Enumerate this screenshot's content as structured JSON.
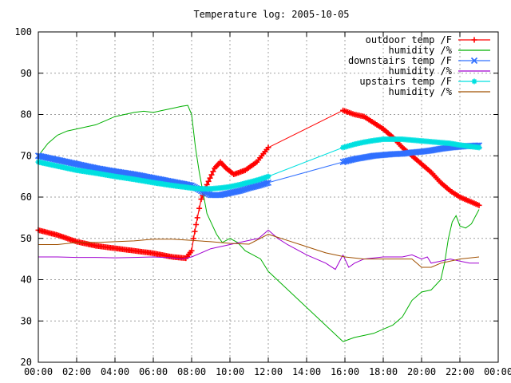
{
  "chart_data": {
    "type": "line",
    "title": "Temperature log: 2005-10-05",
    "xlim": [
      0,
      24
    ],
    "ylim": [
      20,
      100
    ],
    "x_ticks": [
      {
        "v": 0,
        "label": "00:00"
      },
      {
        "v": 2,
        "label": "02:00"
      },
      {
        "v": 4,
        "label": "04:00"
      },
      {
        "v": 6,
        "label": "06:00"
      },
      {
        "v": 8,
        "label": "08:00"
      },
      {
        "v": 10,
        "label": "10:00"
      },
      {
        "v": 12,
        "label": "12:00"
      },
      {
        "v": 14,
        "label": "14:00"
      },
      {
        "v": 16,
        "label": "16:00"
      },
      {
        "v": 18,
        "label": "18:00"
      },
      {
        "v": 20,
        "label": "20:00"
      },
      {
        "v": 22,
        "label": "22:00"
      },
      {
        "v": 24,
        "label": "00:00"
      }
    ],
    "y_ticks": [
      {
        "v": 20,
        "label": "20"
      },
      {
        "v": 30,
        "label": "30"
      },
      {
        "v": 40,
        "label": "40"
      },
      {
        "v": 50,
        "label": "50"
      },
      {
        "v": 60,
        "label": "60"
      },
      {
        "v": 70,
        "label": "70"
      },
      {
        "v": 80,
        "label": "80"
      },
      {
        "v": 90,
        "label": "90"
      },
      {
        "v": 100,
        "label": "100"
      }
    ],
    "grid": true,
    "legend_position": "top-right",
    "series": [
      {
        "name": "outdoor temp /F",
        "color": "#ff0000",
        "marker": "plus",
        "segments": [
          [
            [
              0,
              52
            ],
            [
              1,
              50.8
            ],
            [
              2,
              49.2
            ],
            [
              3,
              48.2
            ],
            [
              4,
              47.6
            ],
            [
              5,
              47
            ],
            [
              6,
              46.4
            ],
            [
              7,
              45.5
            ],
            [
              7.7,
              45.2
            ],
            [
              8,
              47
            ],
            [
              8.1,
              50
            ],
            [
              8.3,
              55
            ],
            [
              8.5,
              59.5
            ],
            [
              8.8,
              63
            ],
            [
              9.2,
              67
            ],
            [
              9.5,
              68.5
            ],
            [
              9.8,
              67
            ],
            [
              10.2,
              65.5
            ],
            [
              10.8,
              66.5
            ],
            [
              11.4,
              68.5
            ],
            [
              12,
              72
            ]
          ],
          [
            [
              15.9,
              81
            ],
            [
              16.5,
              80
            ],
            [
              17,
              79.5
            ],
            [
              17.5,
              78
            ],
            [
              18,
              76.5
            ],
            [
              18.5,
              74.5
            ],
            [
              19,
              72
            ],
            [
              19.5,
              70
            ],
            [
              20,
              68
            ],
            [
              20.5,
              66
            ],
            [
              21,
              63.5
            ],
            [
              21.5,
              61.5
            ],
            [
              22,
              60
            ],
            [
              22.5,
              59
            ],
            [
              23,
              58
            ]
          ]
        ]
      },
      {
        "name": "humidity /%",
        "color": "#00b000",
        "marker": "none",
        "segments": [
          [
            [
              0,
              70
            ],
            [
              0.5,
              73
            ],
            [
              1,
              75
            ],
            [
              1.5,
              76
            ],
            [
              2,
              76.5
            ],
            [
              2.5,
              77
            ],
            [
              3,
              77.5
            ],
            [
              3.5,
              78.5
            ],
            [
              4,
              79.5
            ],
            [
              4.5,
              80
            ],
            [
              5,
              80.5
            ],
            [
              5.5,
              80.8
            ],
            [
              6,
              80.5
            ],
            [
              6.5,
              81
            ],
            [
              7,
              81.5
            ],
            [
              7.5,
              82
            ],
            [
              7.8,
              82.2
            ],
            [
              8,
              80
            ],
            [
              8.2,
              72
            ],
            [
              8.4,
              66
            ],
            [
              8.6,
              61
            ],
            [
              8.8,
              56
            ],
            [
              9,
              54
            ],
            [
              9.3,
              51
            ],
            [
              9.6,
              49
            ],
            [
              10,
              50
            ],
            [
              10.4,
              49
            ],
            [
              10.8,
              47
            ],
            [
              11.2,
              46
            ],
            [
              11.6,
              45
            ],
            [
              12,
              42
            ]
          ],
          [
            [
              15.9,
              25
            ],
            [
              16.5,
              26
            ],
            [
              17,
              26.5
            ],
            [
              17.5,
              27
            ],
            [
              18,
              28
            ],
            [
              18.5,
              29
            ],
            [
              19,
              31
            ],
            [
              19.5,
              35
            ],
            [
              20,
              37
            ],
            [
              20.5,
              37.5
            ],
            [
              21,
              40
            ],
            [
              21.2,
              44
            ],
            [
              21.4,
              50
            ],
            [
              21.6,
              54
            ],
            [
              21.8,
              55.5
            ],
            [
              22,
              53
            ],
            [
              22.3,
              52.5
            ],
            [
              22.6,
              53.5
            ],
            [
              23,
              57
            ]
          ]
        ]
      },
      {
        "name": "downstairs temp /F",
        "color": "#3070ff",
        "marker": "x",
        "segments": [
          [
            [
              0,
              70
            ],
            [
              1,
              69
            ],
            [
              2,
              68
            ],
            [
              3,
              67
            ],
            [
              4,
              66.2
            ],
            [
              5,
              65.5
            ],
            [
              6,
              64.6
            ],
            [
              7,
              63.7
            ],
            [
              8,
              62.8
            ],
            [
              8.5,
              61.5
            ],
            [
              9,
              60.5
            ],
            [
              9.5,
              60.5
            ],
            [
              10,
              61
            ],
            [
              10.5,
              61.5
            ],
            [
              11,
              62.2
            ],
            [
              11.5,
              62.8
            ],
            [
              12,
              63.5
            ]
          ],
          [
            [
              15.9,
              68.5
            ],
            [
              16.5,
              69.2
            ],
            [
              17,
              69.6
            ],
            [
              17.5,
              70
            ],
            [
              18,
              70.2
            ],
            [
              18.5,
              70.4
            ],
            [
              19,
              70.5
            ],
            [
              19.5,
              70.8
            ],
            [
              20,
              71
            ],
            [
              20.5,
              71.3
            ],
            [
              21,
              71.7
            ],
            [
              21.5,
              72
            ],
            [
              22,
              72.2
            ],
            [
              22.5,
              72.4
            ],
            [
              23,
              72.5
            ]
          ]
        ]
      },
      {
        "name": "humidity /%",
        "color": "#a000d0",
        "marker": "none",
        "segments": [
          [
            [
              0,
              45.5
            ],
            [
              1,
              45.5
            ],
            [
              2,
              45.4
            ],
            [
              3,
              45.4
            ],
            [
              4,
              45.3
            ],
            [
              5,
              45.4
            ],
            [
              6,
              45.5
            ],
            [
              7,
              45.3
            ],
            [
              7.5,
              45
            ],
            [
              8,
              45.5
            ],
            [
              8.5,
              46.5
            ],
            [
              9,
              47.5
            ],
            [
              9.5,
              48
            ],
            [
              10,
              48.5
            ],
            [
              10.5,
              49
            ],
            [
              11,
              49.5
            ],
            [
              11.5,
              50
            ],
            [
              12,
              52
            ],
            [
              12.5,
              50
            ],
            [
              13,
              48.5
            ],
            [
              14,
              46
            ],
            [
              15,
              44
            ],
            [
              15.5,
              42.5
            ],
            [
              15.9,
              46
            ]
          ],
          [
            [
              15.9,
              46
            ],
            [
              16.2,
              43
            ],
            [
              16.5,
              44
            ],
            [
              17,
              45
            ],
            [
              18,
              45.5
            ],
            [
              19,
              45.5
            ],
            [
              19.5,
              46
            ],
            [
              20,
              45
            ],
            [
              20.3,
              45.5
            ],
            [
              20.5,
              44
            ],
            [
              21,
              44.5
            ],
            [
              21.5,
              45
            ],
            [
              22,
              44.5
            ],
            [
              22.5,
              44
            ],
            [
              23,
              44
            ]
          ]
        ]
      },
      {
        "name": "upstairs temp /F",
        "color": "#00e0e0",
        "marker": "star",
        "segments": [
          [
            [
              0,
              68.5
            ],
            [
              1,
              67.5
            ],
            [
              2,
              66.5
            ],
            [
              3,
              65.8
            ],
            [
              4,
              65
            ],
            [
              5,
              64.3
            ],
            [
              6,
              63.5
            ],
            [
              7,
              62.8
            ],
            [
              8,
              62.2
            ],
            [
              8.5,
              62
            ],
            [
              9,
              62
            ],
            [
              9.5,
              62.2
            ],
            [
              10,
              62.5
            ],
            [
              10.5,
              63
            ],
            [
              11,
              63.6
            ],
            [
              11.5,
              64.2
            ],
            [
              12,
              65
            ]
          ],
          [
            [
              15.9,
              72
            ],
            [
              16.5,
              72.8
            ],
            [
              17,
              73.3
            ],
            [
              17.5,
              73.7
            ],
            [
              18,
              74
            ],
            [
              18.5,
              74
            ],
            [
              19,
              74
            ],
            [
              19.5,
              73.8
            ],
            [
              20,
              73.6
            ],
            [
              20.5,
              73.4
            ],
            [
              21,
              73.2
            ],
            [
              21.5,
              73
            ],
            [
              22,
              72.6
            ],
            [
              22.5,
              72.3
            ],
            [
              23,
              72
            ]
          ]
        ]
      },
      {
        "name": "humidity /%",
        "color": "#a05000",
        "marker": "none",
        "segments": [
          [
            [
              0,
              48.5
            ],
            [
              1,
              48.5
            ],
            [
              2,
              49
            ],
            [
              3,
              49
            ],
            [
              4,
              49.2
            ],
            [
              5,
              49.4
            ],
            [
              6,
              49.8
            ],
            [
              7,
              49.8
            ],
            [
              8,
              49.5
            ],
            [
              9,
              49.2
            ],
            [
              10,
              48.8
            ],
            [
              11,
              48.6
            ],
            [
              12,
              51
            ],
            [
              13,
              49.5
            ],
            [
              14,
              48
            ],
            [
              15,
              46.5
            ],
            [
              16,
              45.5
            ],
            [
              17,
              45
            ],
            [
              18,
              45
            ],
            [
              19,
              45
            ],
            [
              19.5,
              45
            ],
            [
              20,
              43
            ],
            [
              20.5,
              43
            ],
            [
              21,
              44
            ],
            [
              21.5,
              44.5
            ],
            [
              22,
              45
            ],
            [
              23,
              45.5
            ]
          ]
        ]
      }
    ]
  }
}
